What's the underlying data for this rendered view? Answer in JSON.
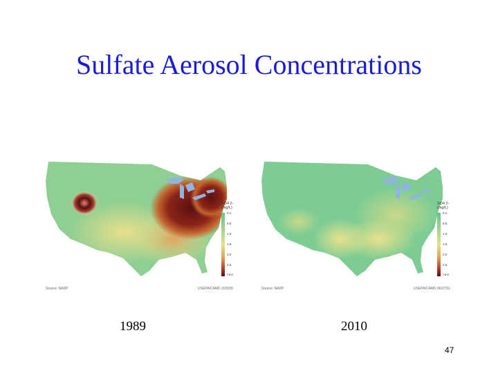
{
  "title": "Sulfate Aerosol Concentrations",
  "maps": [
    {
      "year": "1989",
      "source": "Source: NADP",
      "code": "USEPA/CAMD 2/25/09",
      "legend_unit": "SO4 2- (mg/L)",
      "legend_ticks": [
        "0.1",
        "0.5",
        "1.0",
        "1.5",
        "2.0",
        "2.5",
        ">3.0"
      ]
    },
    {
      "year": "2010",
      "source": "Source: NADP",
      "code": "USEPA/CAMD 06/27/11",
      "legend_unit": "SO4 2- (mg/L)",
      "legend_ticks": [
        "0.1",
        "0.5",
        "1.0",
        "1.5",
        "2.0",
        "2.5",
        ">3.0"
      ]
    }
  ],
  "colors": {
    "title": "#1a1adb",
    "low": "#63c28f",
    "mid": "#e7e38c",
    "high": "#b53c28",
    "max": "#5c1010",
    "water": "#8fb4e0"
  },
  "page_number": "47"
}
